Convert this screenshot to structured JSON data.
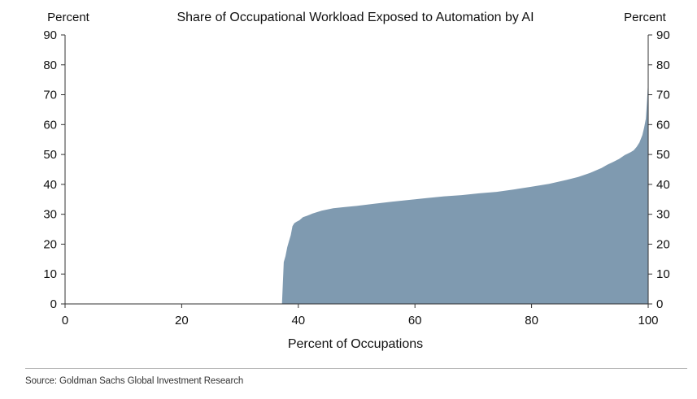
{
  "chart_data": {
    "type": "area",
    "title": "Share of Occupational Workload Exposed to Automation by AI",
    "left_axis_unit": "Percent",
    "right_axis_unit": "Percent",
    "xlabel": "Percent of Occupations",
    "ylabel": "Percent",
    "xlim": [
      0,
      100
    ],
    "ylim": [
      0,
      90
    ],
    "x_ticks": [
      0,
      20,
      40,
      60,
      80,
      100
    ],
    "y_ticks": [
      0,
      10,
      20,
      30,
      40,
      50,
      60,
      70,
      80,
      90
    ],
    "grid": false,
    "fill_color": "#7f9ab0",
    "series": [
      {
        "x": [
          37.2,
          37.5,
          37.8,
          38.1,
          38.4,
          38.7,
          39.0,
          39.3,
          39.7,
          40.2,
          40.8,
          41.5,
          42.5,
          44,
          46,
          48,
          50,
          53,
          56,
          59,
          62,
          65,
          68,
          71,
          74,
          77,
          80,
          83,
          86,
          88,
          90,
          92,
          93,
          94,
          95,
          96,
          97,
          97.5,
          98,
          98.5,
          99,
          99.3,
          99.6,
          99.8,
          100
        ],
        "y": [
          0,
          14,
          16,
          19,
          21,
          23,
          26,
          27,
          27.5,
          28,
          29,
          29.5,
          30.3,
          31.2,
          32,
          32.4,
          32.8,
          33.5,
          34.2,
          34.8,
          35.4,
          36,
          36.4,
          37,
          37.5,
          38.3,
          39.2,
          40.2,
          41.5,
          42.5,
          43.8,
          45.5,
          46.6,
          47.5,
          48.5,
          49.8,
          50.8,
          51.4,
          52.5,
          54,
          56.5,
          59,
          62,
          68,
          75
        ]
      }
    ]
  },
  "source_text": "Source: Goldman Sachs Global Investment Research"
}
